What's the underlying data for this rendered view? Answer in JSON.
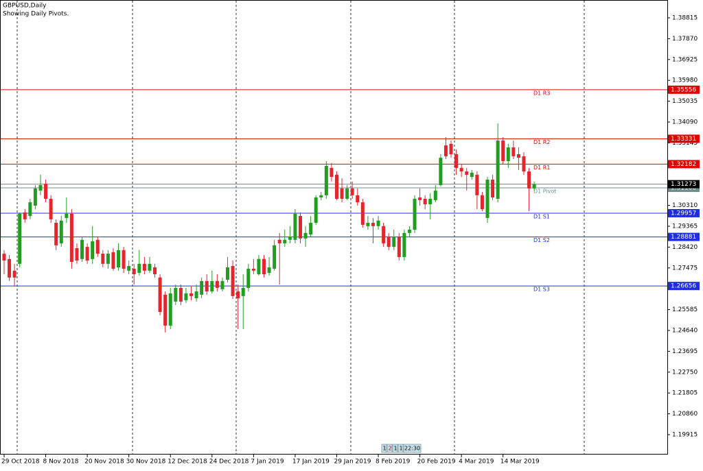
{
  "chart_data": {
    "type": "candlestick",
    "title": "GBPUSD,Daily",
    "subtitle": "Showing Daily Pivots.",
    "categories": [
      "29 Oct 2018",
      null,
      null,
      null,
      null,
      null,
      null,
      null,
      "8 Nov 2018",
      null,
      null,
      null,
      null,
      null,
      null,
      null,
      "20 Nov 2018",
      null,
      null,
      null,
      null,
      null,
      null,
      null,
      "30 Nov 2018",
      null,
      null,
      null,
      null,
      null,
      null,
      null,
      "12 Dec 2018",
      null,
      null,
      null,
      null,
      null,
      null,
      null,
      "24 Dec 2018",
      null,
      null,
      null,
      null,
      null,
      null,
      null,
      "7 Jan 2019",
      null,
      null,
      null,
      null,
      null,
      null,
      null,
      "17 Jan 2019",
      null,
      null,
      null,
      null,
      null,
      null,
      null,
      "29 Jan 2019",
      null,
      null,
      null,
      null,
      null,
      null,
      null,
      "8 Feb 2019",
      null,
      null,
      null,
      null,
      null,
      null,
      null,
      "20 Feb 2019",
      null,
      null,
      null,
      null,
      null,
      null,
      null,
      "4 Mar 2019",
      null,
      null,
      null,
      null,
      null,
      null,
      null,
      "14 Mar 2019",
      null,
      null,
      null,
      null,
      null,
      null
    ],
    "open": [
      1.2812,
      1.2788,
      1.2735,
      1.2766,
      1.2999,
      1.2983,
      1.303,
      1.3098,
      1.3129,
      1.3061,
      1.2952,
      1.2859,
      1.2974,
      1.2993,
      1.2837,
      1.2788,
      1.2843,
      1.2788,
      1.2875,
      1.2812,
      1.2766,
      1.2819,
      1.275,
      1.2828,
      1.2735,
      1.2744,
      1.2725,
      1.2766,
      1.2735,
      1.275,
      1.2704,
      1.2626,
      1.2486,
      1.2595,
      1.2657,
      1.2601,
      1.2632,
      1.261,
      1.2626,
      1.2688,
      1.2641,
      1.2688,
      1.2651,
      1.2694,
      1.2756,
      1.2641,
      1.262,
      1.2657,
      1.2744,
      1.2719,
      1.2788,
      1.2725,
      1.2744,
      1.2875,
      1.2859,
      1.2875,
      1.2875,
      1.2983,
      1.2881,
      1.2899,
      1.2952,
      1.3067,
      1.3077,
      1.3201,
      1.317,
      1.3108,
      1.3061,
      1.3108,
      1.3077,
      1.3045,
      1.2937,
      1.2952,
      1.2937,
      1.2937,
      1.289,
      1.2843,
      1.289,
      1.2797,
      1.2906,
      1.2921,
      1.3067,
      1.3061,
      1.3036,
      1.3055,
      1.3123,
      1.3303,
      1.331,
      1.3263,
      1.3201,
      1.3185,
      1.316,
      1.317,
      1.3077,
      1.2974,
      1.3148,
      1.3061,
      1.3325,
      1.3232,
      1.3294,
      1.3263,
      1.3254,
      1.3185,
      1.3108
    ],
    "high": [
      1.2828,
      1.2806,
      1.2766,
      1.2999,
      1.3014,
      1.3061,
      1.3123,
      1.317,
      1.3148,
      1.3077,
      1.2968,
      1.2983,
      1.3067,
      1.3014,
      1.2859,
      1.289,
      1.2859,
      1.2937,
      1.289,
      1.2828,
      1.2828,
      1.2837,
      1.2859,
      1.2843,
      1.2781,
      1.2766,
      1.2828,
      1.2797,
      1.2797,
      1.2766,
      1.2719,
      1.2641,
      1.2657,
      1.2672,
      1.2672,
      1.2657,
      1.2663,
      1.2672,
      1.2704,
      1.2719,
      1.2735,
      1.2719,
      1.2704,
      1.2797,
      1.2781,
      1.2672,
      1.2719,
      1.2766,
      1.2788,
      1.2806,
      1.2806,
      1.2797,
      1.2875,
      1.2906,
      1.2921,
      1.2937,
      1.3014,
      1.2999,
      1.2937,
      1.2983,
      1.3077,
      1.3092,
      1.3232,
      1.3223,
      1.3185,
      1.3154,
      1.3123,
      1.3139,
      1.3108,
      1.3061,
      1.2983,
      1.2974,
      1.2983,
      1.2952,
      1.2906,
      1.2921,
      1.2906,
      1.2921,
      1.2937,
      1.3077,
      1.3108,
      1.3077,
      1.3086,
      1.3123,
      1.3263,
      1.3341,
      1.3325,
      1.3285,
      1.3216,
      1.3201,
      1.3192,
      1.3185,
      1.3092,
      1.316,
      1.317,
      1.3403,
      1.3341,
      1.331,
      1.3325,
      1.3294,
      1.3272,
      1.3201,
      1.3139
    ],
    "low": [
      1.2719,
      1.2688,
      1.2663,
      1.275,
      1.2952,
      1.2968,
      1.3014,
      1.3077,
      1.3045,
      1.2952,
      1.2828,
      1.2843,
      1.2952,
      1.2744,
      1.2766,
      1.2775,
      1.2766,
      1.2766,
      1.2797,
      1.275,
      1.2744,
      1.2735,
      1.2735,
      1.2725,
      1.2719,
      1.2672,
      1.2713,
      1.2719,
      1.2725,
      1.2704,
      1.2533,
      1.2455,
      1.247,
      1.2579,
      1.2579,
      1.2589,
      1.2601,
      1.2595,
      1.261,
      1.2626,
      1.2632,
      1.2641,
      1.2641,
      1.2682,
      1.2607,
      1.247,
      1.247,
      1.2641,
      1.2719,
      1.2713,
      1.2704,
      1.2713,
      1.2735,
      1.2672,
      1.2843,
      1.2859,
      1.2859,
      1.2859,
      1.2843,
      1.289,
      1.2943,
      1.3055,
      1.3061,
      1.3139,
      1.3055,
      1.3045,
      1.3055,
      1.3061,
      1.303,
      1.293,
      1.2921,
      1.2859,
      1.2921,
      1.2843,
      1.2828,
      1.2828,
      1.2781,
      1.2781,
      1.289,
      1.2906,
      1.303,
      1.3014,
      1.2968,
      1.3045,
      1.3117,
      1.3241,
      1.3247,
      1.317,
      1.316,
      1.3098,
      1.3148,
      1.3014,
      1.3005,
      1.2952,
      1.3055,
      1.3045,
      1.3216,
      1.3201,
      1.3241,
      1.3192,
      1.317,
      1.3005,
      1.3098
    ],
    "close": [
      1.2781,
      1.2704,
      1.2704,
      1.2993,
      1.2968,
      1.3045,
      1.3108,
      1.3123,
      1.3061,
      1.2968,
      1.285,
      1.2962,
      1.2993,
      1.2775,
      1.2781,
      1.2875,
      1.2781,
      1.2868,
      1.2812,
      1.2766,
      1.2812,
      1.2744,
      1.2828,
      1.2744,
      1.2756,
      1.2719,
      1.2766,
      1.2735,
      1.2766,
      1.2719,
      1.2548,
      1.2486,
      1.2632,
      1.2657,
      1.2595,
      1.2632,
      1.262,
      1.2641,
      1.2688,
      1.2641,
      1.2688,
      1.2657,
      1.2688,
      1.275,
      1.262,
      1.261,
      1.2657,
      1.2744,
      1.2735,
      1.2788,
      1.2719,
      1.275,
      1.285,
      1.2859,
      1.2875,
      1.289,
      1.2993,
      1.2881,
      1.2906,
      1.2952,
      1.3067,
      1.3077,
      1.321,
      1.316,
      1.3061,
      1.3061,
      1.3108,
      1.3077,
      1.3045,
      1.2943,
      1.2952,
      1.2937,
      1.2962,
      1.2859,
      1.2843,
      1.289,
      1.2797,
      1.2906,
      1.2921,
      1.3061,
      1.3055,
      1.3036,
      1.3061,
      1.3098,
      1.3247,
      1.3254,
      1.3263,
      1.3201,
      1.3185,
      1.317,
      1.3179,
      1.3077,
      1.3014,
      1.3148,
      1.3067,
      1.3325,
      1.3232,
      1.3294,
      1.3254,
      1.3247,
      1.3185,
      1.3108,
      1.3127
    ],
    "up_color": "#1f9e1f",
    "down_color": "#e3262d",
    "ylim": [
      1.19014,
      1.39623
    ],
    "yticks": [
      1.38815,
      {
        "value": 1.3787,
        "label": "1.37870"
      },
      1.36925,
      {
        "value": 1.3598,
        "label": "1.35980"
      },
      1.35035,
      {
        "value": 1.3409,
        "label": "1.34090"
      },
      1.33145,
      {
        "value": 1.3031,
        "label": "1.30310"
      },
      1.29365,
      {
        "value": 1.2842,
        "label": "1.28420"
      },
      1.27475,
      1.25585,
      {
        "value": 1.2464,
        "label": "1.24640"
      },
      1.23695,
      {
        "value": 1.2275,
        "label": "1.22750"
      },
      1.21805,
      {
        "value": 1.2086,
        "label": "1.20860"
      },
      1.19915
    ],
    "pivots": [
      {
        "label": "D1 R3",
        "value": 1.35556,
        "color": "#e00000"
      },
      {
        "label": "D1 R2",
        "value": 1.33331,
        "color": "#e00000"
      },
      {
        "label": "D1 R1",
        "value": 1.32182,
        "color": "#e00000"
      },
      {
        "label": "D1 Pivot",
        "value": 1.31106,
        "color": "#6f8f8f"
      },
      {
        "label": "D1 S1",
        "value": 1.29957,
        "color": "#1f2fe0"
      },
      {
        "label": "D1 S2",
        "value": 1.28881,
        "color": "#1f2fe0"
      },
      {
        "label": "D1 S3",
        "value": 1.26656,
        "color": "#1f2fe0"
      }
    ],
    "current_price": 1.31273,
    "toolbar": {
      "buttons": [
        "1",
        "2",
        "1",
        "1"
      ],
      "time": "22:30"
    }
  }
}
